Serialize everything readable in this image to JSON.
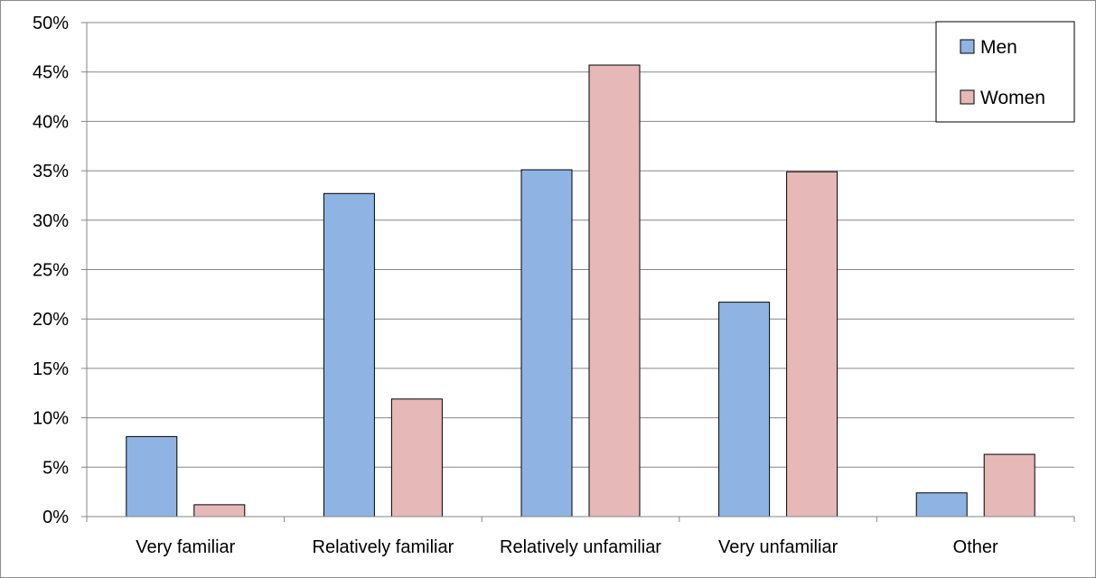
{
  "chart_data": {
    "type": "bar",
    "title": "",
    "xlabel": "",
    "ylabel": "",
    "categories": [
      "Very familiar",
      "Relatively familiar",
      "Relatively unfamiliar",
      "Very unfamiliar",
      "Other"
    ],
    "series": [
      {
        "name": "Men",
        "color": "#8fb4e3",
        "values": [
          8.1,
          32.7,
          35.1,
          21.7,
          2.4
        ]
      },
      {
        "name": "Women",
        "color": "#e6b8b7",
        "values": [
          1.2,
          11.9,
          45.7,
          34.9,
          6.3
        ]
      }
    ],
    "ylim": [
      0,
      50
    ],
    "yticks": [
      0,
      5,
      10,
      15,
      20,
      25,
      30,
      35,
      40,
      45,
      50
    ],
    "ytick_labels": [
      "0%",
      "5%",
      "10%",
      "15%",
      "20%",
      "25%",
      "30%",
      "35%",
      "40%",
      "45%",
      "50%"
    ],
    "grid": true,
    "legend": "top-right"
  }
}
